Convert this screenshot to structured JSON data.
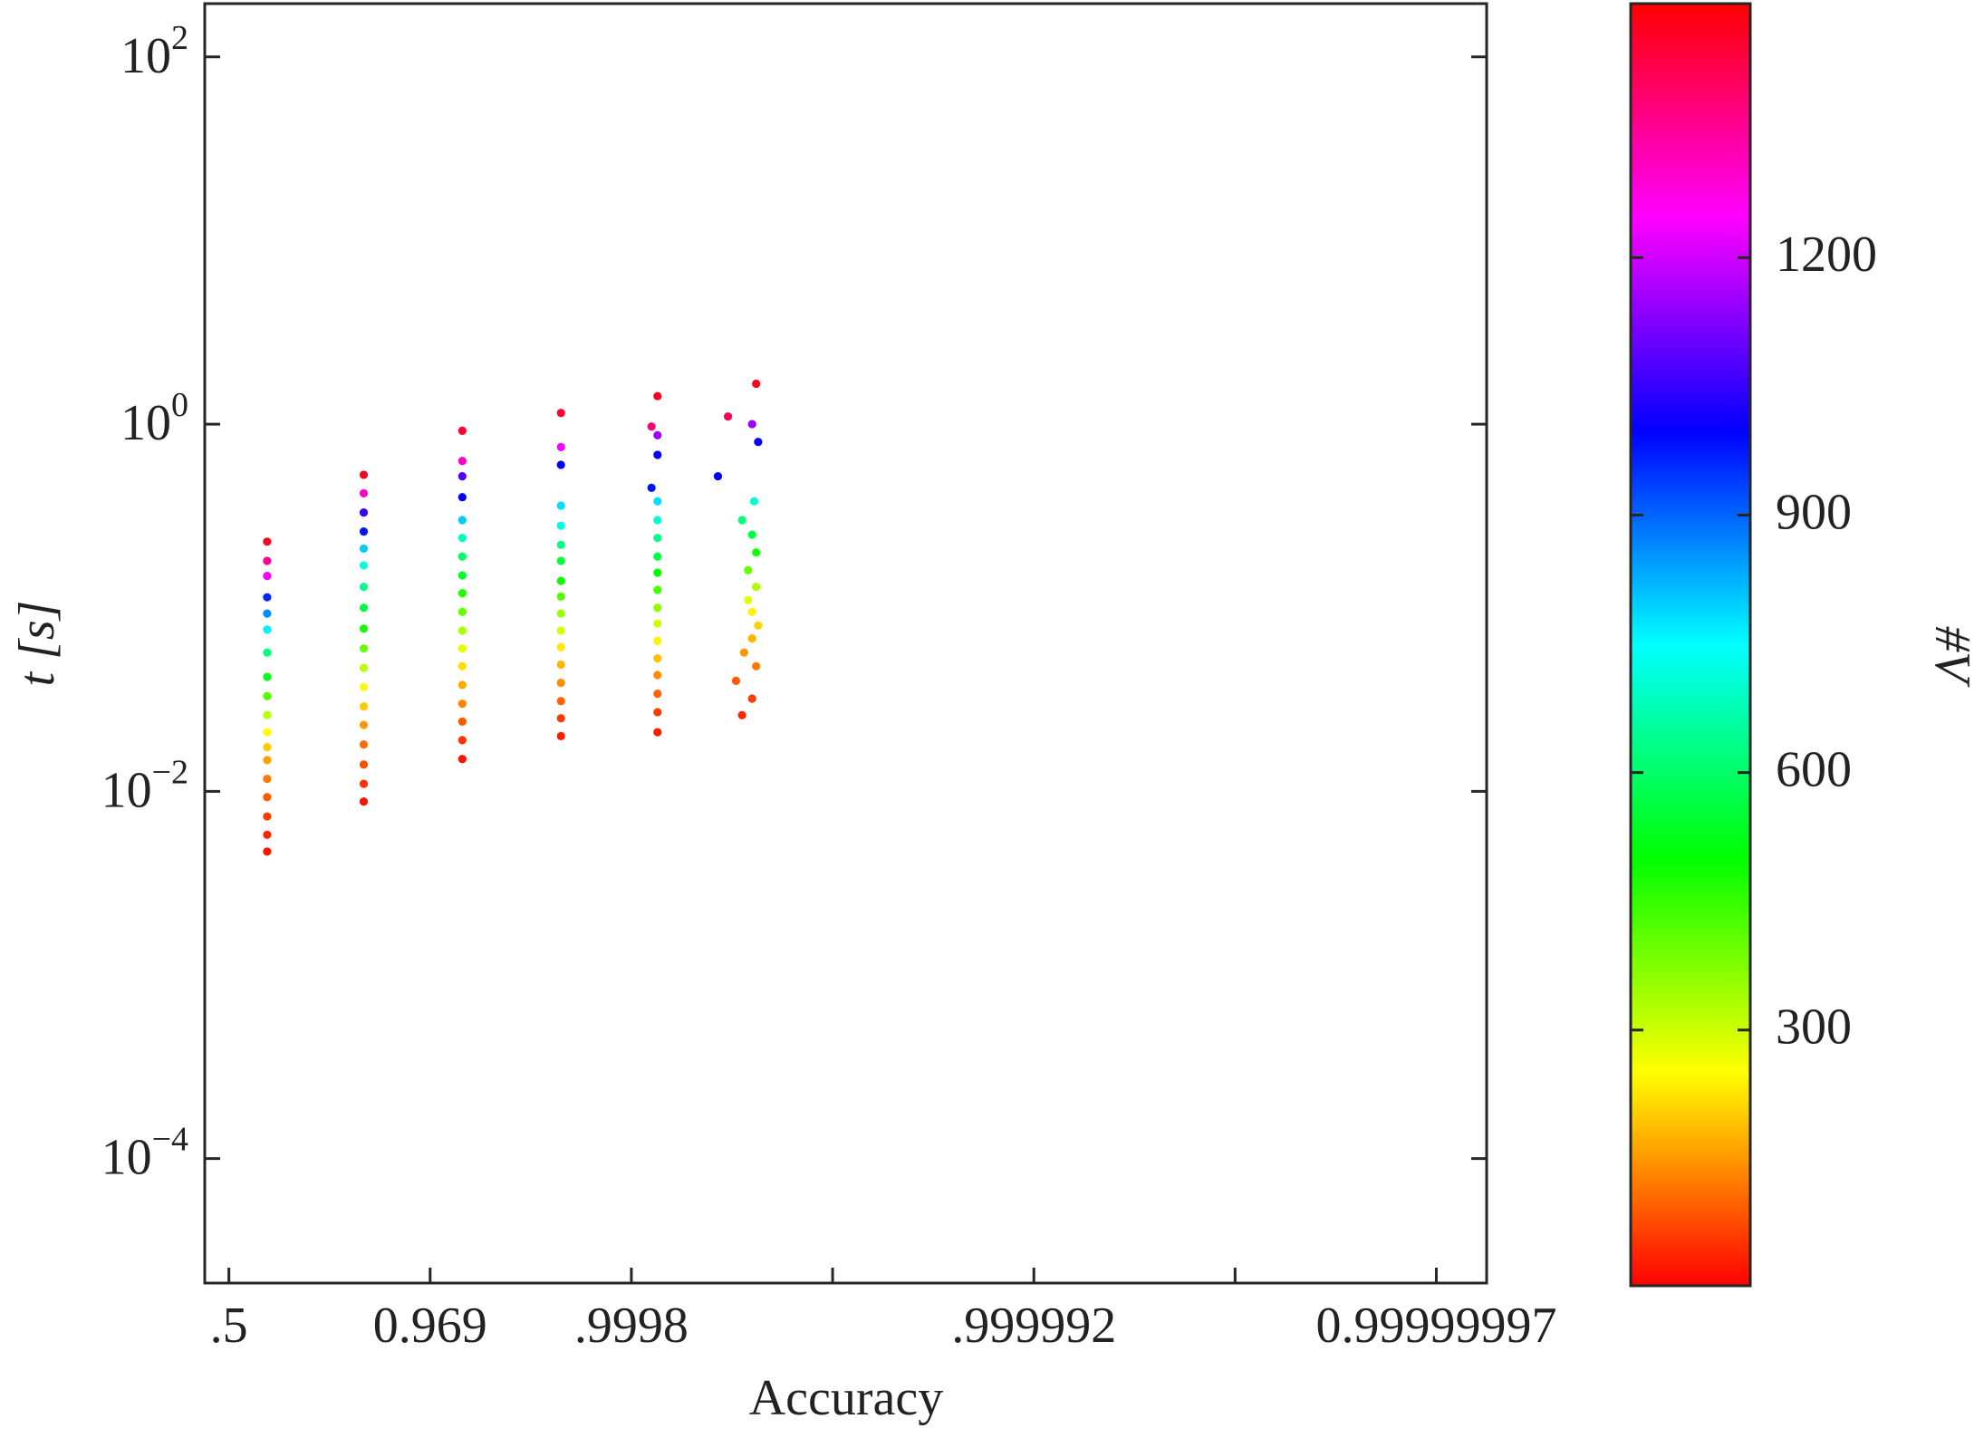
{
  "chart_data": {
    "type": "scatter",
    "xlabel": "Accuracy",
    "ylabel": "t [s]",
    "colorbar_label": "#V",
    "xlim": [
      -0.12,
      6.25
    ],
    "xticks": [
      {
        "value": 0,
        "label": ".5"
      },
      {
        "value": 1,
        "label": "0.969"
      },
      {
        "value": 2,
        "label": ".9998"
      },
      3,
      {
        "value": 4,
        "label": ".999992"
      },
      5,
      {
        "value": 6,
        "label": "0.99999997"
      }
    ],
    "xtick_labelled": [
      true,
      true,
      true,
      false,
      true,
      false,
      true
    ],
    "ylim": [
      2.1e-05,
      195
    ],
    "yscale": "log",
    "yticks": [
      {
        "value": 0.0001,
        "label": "10^−4"
      },
      {
        "value": 0.01,
        "label": "10^−2"
      },
      {
        "value": 1,
        "label": "10^0"
      },
      {
        "value": 100,
        "label": "10^2"
      }
    ],
    "colormap": "hsv",
    "clim": [
      2,
      1496
    ],
    "cticks": [
      300,
      600,
      900,
      1200
    ],
    "x": [
      0.19,
      0.19,
      0.19,
      0.19,
      0.19,
      0.19,
      0.19,
      0.19,
      0.19,
      0.19,
      0.19,
      0.19,
      0.19,
      0.19,
      0.19,
      0.19,
      0.19,
      0.19,
      0.67,
      0.67,
      0.67,
      0.67,
      0.67,
      0.67,
      0.67,
      0.67,
      0.67,
      0.67,
      0.67,
      0.67,
      0.67,
      0.67,
      0.67,
      0.67,
      0.67,
      0.67,
      1.16,
      1.16,
      1.16,
      1.16,
      1.16,
      1.16,
      1.16,
      1.16,
      1.16,
      1.16,
      1.16,
      1.16,
      1.16,
      1.16,
      1.16,
      1.16,
      1.16,
      1.16,
      1.65,
      1.65,
      1.65,
      1.65,
      1.65,
      1.65,
      1.65,
      1.65,
      1.65,
      1.65,
      1.65,
      1.65,
      1.65,
      1.65,
      1.65,
      1.65,
      1.65,
      2.13,
      2.13,
      2.13,
      2.13,
      2.13,
      2.13,
      2.13,
      2.13,
      2.13,
      2.13,
      2.13,
      2.13,
      2.13,
      2.13,
      2.1,
      2.13,
      2.13,
      2.1,
      2.13,
      2.55,
      2.6,
      2.52,
      2.62,
      2.56,
      2.6,
      2.63,
      2.6,
      2.58,
      2.62,
      2.58,
      2.62,
      2.6,
      2.55,
      2.61,
      2.43,
      2.63,
      2.6,
      2.48,
      2.62
    ],
    "values": [
      0.0047,
      0.0058,
      0.0073,
      0.0093,
      0.0117,
      0.0148,
      0.0174,
      0.021,
      0.026,
      0.033,
      0.042,
      0.057,
      0.076,
      0.093,
      0.114,
      0.149,
      0.18,
      0.229,
      0.0088,
      0.011,
      0.014,
      0.018,
      0.023,
      0.029,
      0.037,
      0.047,
      0.06,
      0.077,
      0.1,
      0.13,
      0.17,
      0.21,
      0.26,
      0.33,
      0.42,
      0.53,
      0.015,
      0.019,
      0.024,
      0.03,
      0.038,
      0.048,
      0.06,
      0.075,
      0.095,
      0.12,
      0.15,
      0.19,
      0.24,
      0.3,
      0.4,
      0.52,
      0.63,
      0.92,
      0.02,
      0.025,
      0.031,
      0.039,
      0.049,
      0.061,
      0.075,
      0.093,
      0.115,
      0.14,
      0.18,
      0.22,
      0.28,
      0.36,
      0.6,
      0.75,
      1.15,
      0.021,
      0.027,
      0.034,
      0.043,
      0.053,
      0.066,
      0.082,
      0.1,
      0.125,
      0.155,
      0.19,
      0.24,
      0.3,
      0.38,
      0.45,
      0.68,
      0.87,
      0.97,
      1.42,
      0.026,
      0.032,
      0.04,
      0.048,
      0.057,
      0.068,
      0.08,
      0.095,
      0.11,
      0.13,
      0.16,
      0.2,
      0.25,
      0.3,
      0.38,
      0.52,
      0.8,
      1.0,
      1.1,
      1.66
    ],
    "colors": [
      20,
      40,
      60,
      90,
      120,
      160,
      200,
      250,
      320,
      420,
      520,
      620,
      760,
      860,
      960,
      1240,
      1350,
      1460,
      20,
      50,
      80,
      110,
      150,
      200,
      260,
      320,
      400,
      480,
      560,
      640,
      720,
      800,
      980,
      1050,
      1300,
      1460,
      20,
      50,
      90,
      130,
      170,
      220,
      280,
      330,
      400,
      470,
      540,
      600,
      680,
      800,
      1000,
      1080,
      1300,
      1450,
      30,
      60,
      100,
      140,
      180,
      230,
      290,
      350,
      420,
      490,
      560,
      630,
      720,
      780,
      1000,
      1250,
      1450,
      30,
      60,
      100,
      140,
      190,
      240,
      300,
      360,
      430,
      500,
      570,
      640,
      700,
      780,
      980,
      1000,
      1150,
      1380,
      1460,
      40,
      60,
      90,
      120,
      150,
      180,
      210,
      240,
      280,
      330,
      400,
      480,
      560,
      620,
      700,
      1000,
      1000,
      1150,
      1420,
      1470
    ]
  }
}
